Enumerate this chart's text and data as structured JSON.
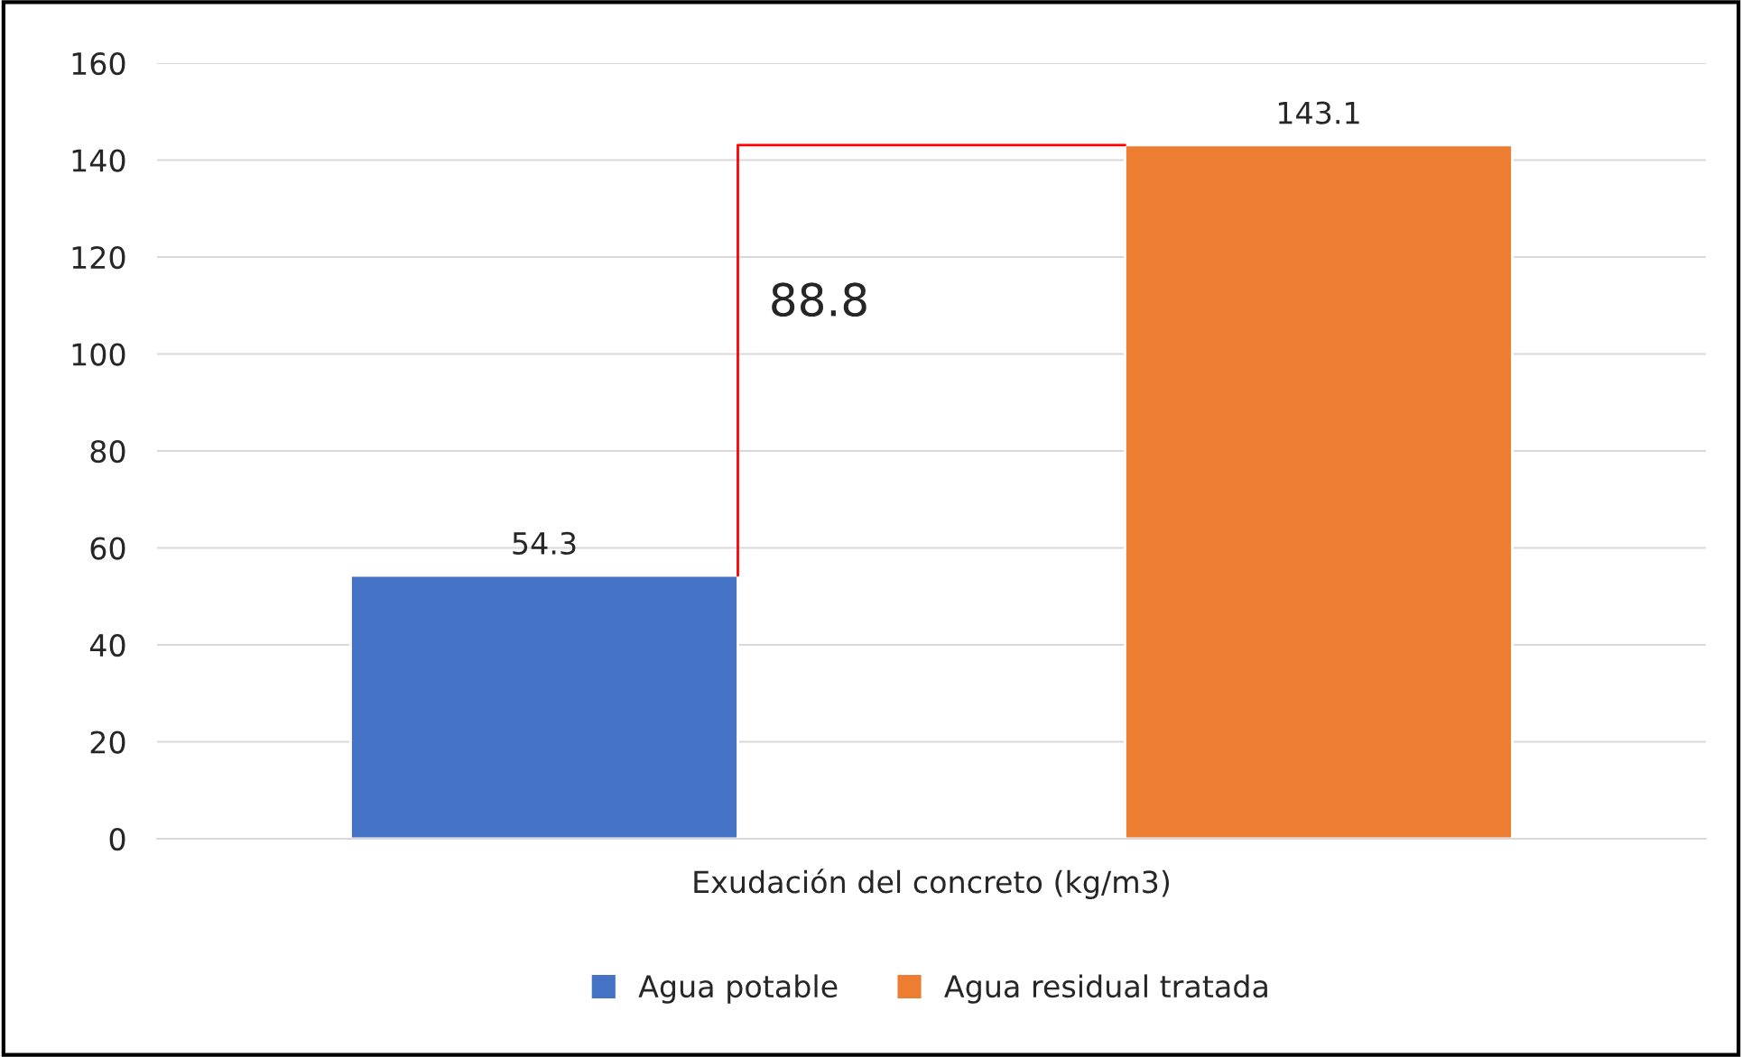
{
  "chart_data": {
    "type": "bar",
    "categories": [
      "Exudación del concreto (kg/m3)"
    ],
    "series": [
      {
        "name": "Agua potable",
        "color": "#4472c4",
        "values": [
          54.3
        ]
      },
      {
        "name": "Agua residual tratada",
        "color": "#ed7d31",
        "values": [
          143.1
        ]
      }
    ],
    "ylim": [
      0,
      160
    ],
    "yticks": [
      0,
      20,
      40,
      60,
      80,
      100,
      120,
      140,
      160
    ],
    "grid": "y",
    "legend": "bottom",
    "data_labels": true,
    "annotations": [
      "88.8"
    ]
  }
}
